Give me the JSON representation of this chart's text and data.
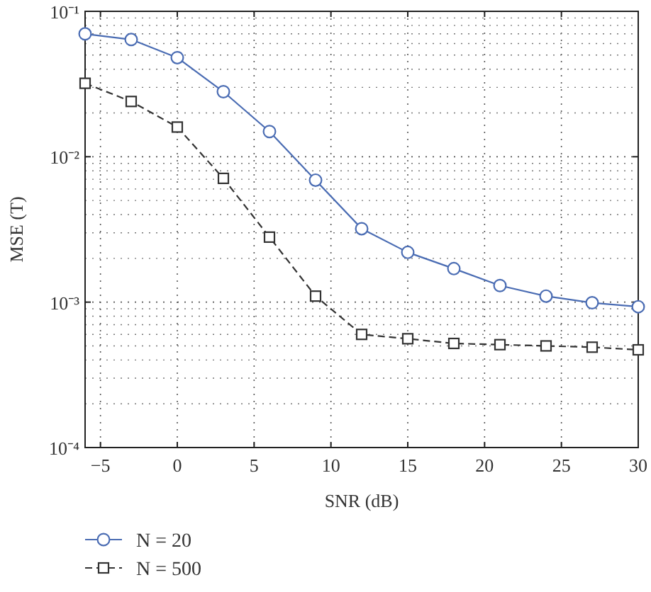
{
  "chart_data": {
    "type": "line",
    "xlabel": "SNR (dB)",
    "ylabel": "MSE (T)",
    "x": [
      -6,
      -3,
      0,
      3,
      6,
      9,
      12,
      15,
      18,
      21,
      24,
      27,
      30
    ],
    "series": [
      {
        "name": "N = 20",
        "color": "#4a6cb3",
        "marker": "circle",
        "line_style": "solid",
        "values": [
          0.07,
          0.064,
          0.048,
          0.028,
          0.0149,
          0.0069,
          0.0032,
          0.0022,
          0.0017,
          0.0013,
          0.0011,
          0.00099,
          0.00093
        ]
      },
      {
        "name": "N = 500",
        "color": "#333333",
        "marker": "square",
        "line_style": "dashed",
        "values": [
          0.032,
          0.024,
          0.016,
          0.0071,
          0.0028,
          0.0011,
          0.0006,
          0.00056,
          0.00052,
          0.00051,
          0.0005,
          0.00049,
          0.00047
        ]
      }
    ],
    "log": "y",
    "xlim": [
      -6,
      30
    ],
    "xticks": [
      -5,
      0,
      5,
      10,
      15,
      20,
      25,
      30
    ],
    "ylim": [
      0.0001,
      0.1
    ],
    "yticks": [
      {
        "value": 0.0001,
        "label": "10⁻⁴"
      },
      {
        "value": 0.001,
        "label": "10⁻³"
      },
      {
        "value": 0.01,
        "label": "10⁻²"
      },
      {
        "value": 0.1,
        "label": "10⁻¹"
      }
    ],
    "grid": true,
    "legend": "bottom left"
  }
}
